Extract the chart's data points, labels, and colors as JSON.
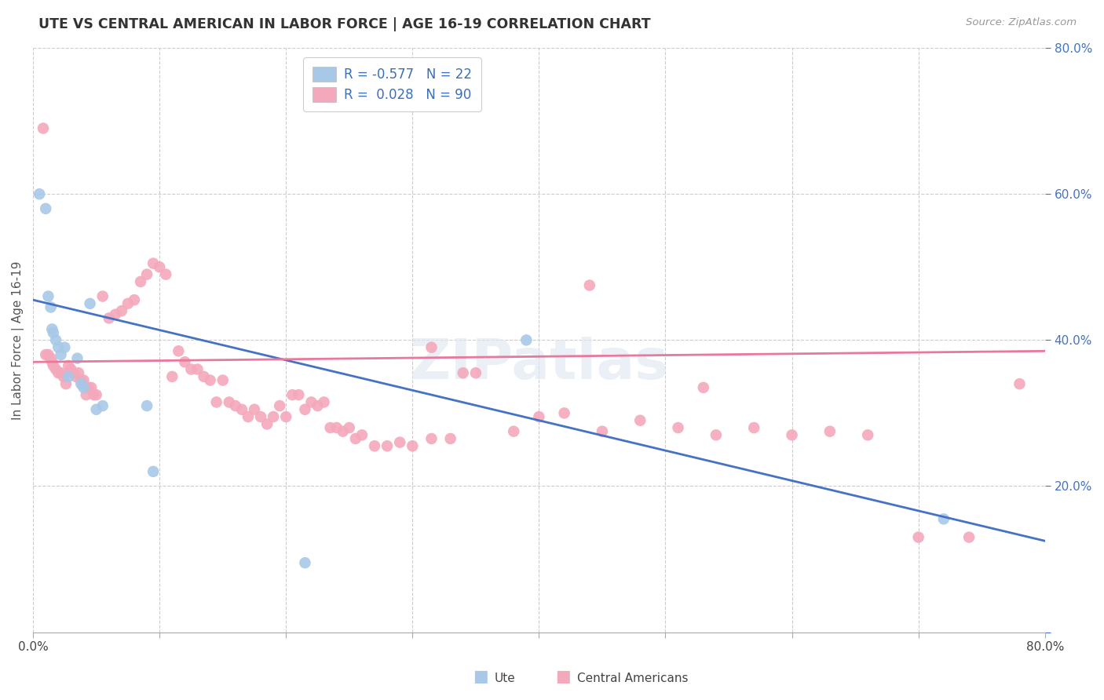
{
  "title": "UTE VS CENTRAL AMERICAN IN LABOR FORCE | AGE 16-19 CORRELATION CHART",
  "source": "Source: ZipAtlas.com",
  "ylabel": "In Labor Force | Age 16-19",
  "xlim": [
    0.0,
    0.8
  ],
  "ylim": [
    0.0,
    0.8
  ],
  "legend_r_ute": "-0.577",
  "legend_n_ute": "22",
  "legend_r_ca": "0.028",
  "legend_n_ca": "90",
  "ute_color": "#a8c8e8",
  "ca_color": "#f4a8bc",
  "ute_line_color": "#4472c4",
  "ca_line_color": "#e8789c",
  "watermark_text": "ZIPatlas",
  "ute_line_x0": 0.0,
  "ute_line_y0": 0.455,
  "ute_line_x1": 0.8,
  "ute_line_y1": 0.125,
  "ca_line_x0": 0.0,
  "ca_line_y0": 0.37,
  "ca_line_x1": 0.8,
  "ca_line_y1": 0.385,
  "ute_points_x": [
    0.005,
    0.01,
    0.012,
    0.014,
    0.015,
    0.016,
    0.018,
    0.02,
    0.022,
    0.025,
    0.028,
    0.035,
    0.038,
    0.04,
    0.045,
    0.05,
    0.055,
    0.09,
    0.095,
    0.215,
    0.39,
    0.72
  ],
  "ute_points_y": [
    0.6,
    0.58,
    0.46,
    0.445,
    0.415,
    0.41,
    0.4,
    0.39,
    0.38,
    0.39,
    0.35,
    0.375,
    0.34,
    0.335,
    0.45,
    0.305,
    0.31,
    0.31,
    0.22,
    0.095,
    0.4,
    0.155
  ],
  "ca_points_x": [
    0.008,
    0.01,
    0.012,
    0.014,
    0.015,
    0.016,
    0.018,
    0.02,
    0.022,
    0.024,
    0.026,
    0.028,
    0.03,
    0.032,
    0.034,
    0.036,
    0.038,
    0.04,
    0.042,
    0.044,
    0.046,
    0.048,
    0.05,
    0.055,
    0.06,
    0.065,
    0.07,
    0.075,
    0.08,
    0.085,
    0.09,
    0.095,
    0.1,
    0.105,
    0.11,
    0.115,
    0.12,
    0.125,
    0.13,
    0.135,
    0.14,
    0.145,
    0.15,
    0.155,
    0.16,
    0.165,
    0.17,
    0.175,
    0.18,
    0.185,
    0.19,
    0.195,
    0.2,
    0.205,
    0.21,
    0.215,
    0.22,
    0.225,
    0.23,
    0.235,
    0.24,
    0.245,
    0.25,
    0.255,
    0.26,
    0.27,
    0.28,
    0.29,
    0.3,
    0.315,
    0.33,
    0.35,
    0.38,
    0.4,
    0.42,
    0.45,
    0.48,
    0.51,
    0.54,
    0.57,
    0.6,
    0.63,
    0.66,
    0.7,
    0.74,
    0.78,
    0.315,
    0.34,
    0.44,
    0.53
  ],
  "ca_points_y": [
    0.69,
    0.38,
    0.38,
    0.375,
    0.37,
    0.365,
    0.36,
    0.355,
    0.355,
    0.35,
    0.34,
    0.365,
    0.36,
    0.355,
    0.35,
    0.355,
    0.345,
    0.345,
    0.325,
    0.335,
    0.335,
    0.325,
    0.325,
    0.46,
    0.43,
    0.435,
    0.44,
    0.45,
    0.455,
    0.48,
    0.49,
    0.505,
    0.5,
    0.49,
    0.35,
    0.385,
    0.37,
    0.36,
    0.36,
    0.35,
    0.345,
    0.315,
    0.345,
    0.315,
    0.31,
    0.305,
    0.295,
    0.305,
    0.295,
    0.285,
    0.295,
    0.31,
    0.295,
    0.325,
    0.325,
    0.305,
    0.315,
    0.31,
    0.315,
    0.28,
    0.28,
    0.275,
    0.28,
    0.265,
    0.27,
    0.255,
    0.255,
    0.26,
    0.255,
    0.265,
    0.265,
    0.355,
    0.275,
    0.295,
    0.3,
    0.275,
    0.29,
    0.28,
    0.27,
    0.28,
    0.27,
    0.275,
    0.27,
    0.13,
    0.13,
    0.34,
    0.39,
    0.355,
    0.475,
    0.335
  ]
}
